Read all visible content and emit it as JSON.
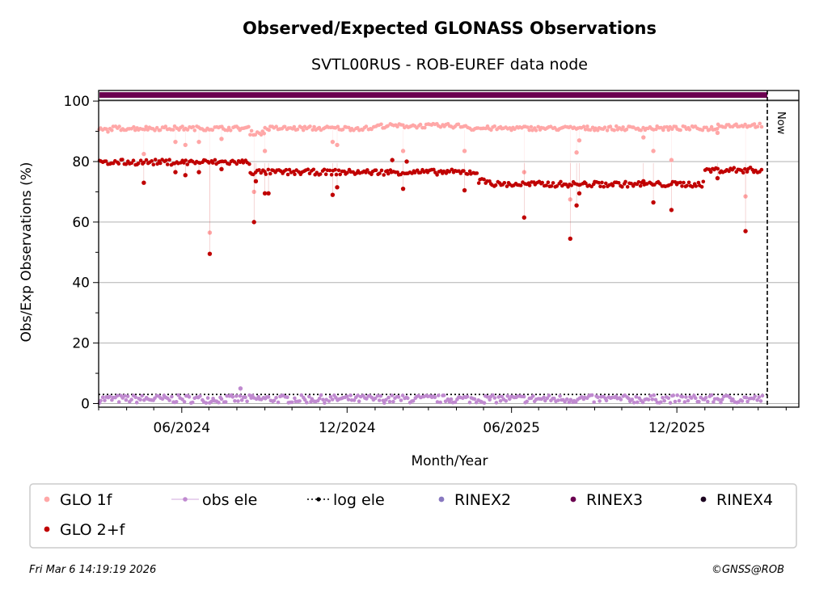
{
  "chart_data": {
    "type": "scatter",
    "title": "Observed/Expected GLONASS Observations",
    "subtitle": "SVTL00RUS - ROB-EUREF data node",
    "xlabel": "Month/Year",
    "ylabel": "Obs/Exp Observations (%)",
    "ylim": [
      0,
      103
    ],
    "yticks": [
      0,
      20,
      40,
      60,
      80,
      100
    ],
    "xticks": [
      "06/2024",
      "12/2024",
      "06/2025",
      "12/2025"
    ],
    "now_label": "Now",
    "grid": "horizontal",
    "legend_position": "bottom",
    "series": [
      {
        "name": "GLO 1f",
        "color": "#ffa7a7",
        "segments": [
          {
            "from": "2024-03-01",
            "to": "2024-03-15",
            "value": 90.5
          },
          {
            "from": "2024-03-15",
            "to": "2024-08-15",
            "value": 91.0
          },
          {
            "from": "2024-08-15",
            "to": "2024-09-01",
            "value": 89.5
          },
          {
            "from": "2024-09-01",
            "to": "2025-01-01",
            "value": 91.0
          },
          {
            "from": "2025-01-01",
            "to": "2025-04-15",
            "value": 91.8
          },
          {
            "from": "2025-04-15",
            "to": "2025-08-15",
            "value": 91.0
          },
          {
            "from": "2025-08-15",
            "to": "2026-01-15",
            "value": 91.0
          },
          {
            "from": "2026-01-15",
            "to": "2026-03-06",
            "value": 92.0
          }
        ],
        "outliers": [
          {
            "date": "2024-04-20",
            "value": 82.5
          },
          {
            "date": "2024-05-25",
            "value": 86.5
          },
          {
            "date": "2024-06-05",
            "value": 85.5
          },
          {
            "date": "2024-06-20",
            "value": 86.5
          },
          {
            "date": "2024-07-02",
            "value": 56.5
          },
          {
            "date": "2024-07-15",
            "value": 87.5
          },
          {
            "date": "2024-08-20",
            "value": 70.0
          },
          {
            "date": "2024-09-01",
            "value": 83.5
          },
          {
            "date": "2024-11-15",
            "value": 86.5
          },
          {
            "date": "2024-11-20",
            "value": 85.5
          },
          {
            "date": "2025-02-01",
            "value": 83.5
          },
          {
            "date": "2025-04-10",
            "value": 83.5
          },
          {
            "date": "2025-06-15",
            "value": 76.5
          },
          {
            "date": "2025-08-05",
            "value": 67.5
          },
          {
            "date": "2025-08-12",
            "value": 83.0
          },
          {
            "date": "2025-08-15",
            "value": 87.0
          },
          {
            "date": "2025-10-25",
            "value": 88.0
          },
          {
            "date": "2025-11-05",
            "value": 83.5
          },
          {
            "date": "2025-11-25",
            "value": 80.5
          },
          {
            "date": "2026-01-15",
            "value": 89.5
          },
          {
            "date": "2026-02-15",
            "value": 68.5
          }
        ]
      },
      {
        "name": "GLO 2+f",
        "color": "#c00000",
        "segments": [
          {
            "from": "2024-03-01",
            "to": "2024-03-15",
            "value": 79.5
          },
          {
            "from": "2024-03-15",
            "to": "2024-08-15",
            "value": 79.8
          },
          {
            "from": "2024-08-15",
            "to": "2024-12-15",
            "value": 76.5
          },
          {
            "from": "2024-12-15",
            "to": "2025-01-15",
            "value": 76.5
          },
          {
            "from": "2025-01-15",
            "to": "2025-04-25",
            "value": 76.5
          },
          {
            "from": "2025-04-25",
            "to": "2025-05-10",
            "value": 73.5
          },
          {
            "from": "2025-05-10",
            "to": "2026-01-01",
            "value": 72.5
          },
          {
            "from": "2026-01-01",
            "to": "2026-03-06",
            "value": 77.2
          }
        ],
        "outliers": [
          {
            "date": "2024-04-20",
            "value": 73.0
          },
          {
            "date": "2024-05-25",
            "value": 76.5
          },
          {
            "date": "2024-06-05",
            "value": 75.5
          },
          {
            "date": "2024-06-20",
            "value": 76.5
          },
          {
            "date": "2024-07-02",
            "value": 49.5
          },
          {
            "date": "2024-07-15",
            "value": 77.5
          },
          {
            "date": "2024-08-20",
            "value": 60.0
          },
          {
            "date": "2024-08-22",
            "value": 73.5
          },
          {
            "date": "2024-09-01",
            "value": 69.5
          },
          {
            "date": "2024-09-05",
            "value": 69.5
          },
          {
            "date": "2024-11-15",
            "value": 69.0
          },
          {
            "date": "2024-11-20",
            "value": 71.5
          },
          {
            "date": "2025-01-20",
            "value": 80.5
          },
          {
            "date": "2025-02-01",
            "value": 71.0
          },
          {
            "date": "2025-02-05",
            "value": 80.0
          },
          {
            "date": "2025-04-10",
            "value": 70.5
          },
          {
            "date": "2025-06-15",
            "value": 61.5
          },
          {
            "date": "2025-08-05",
            "value": 54.5
          },
          {
            "date": "2025-08-12",
            "value": 65.5
          },
          {
            "date": "2025-08-15",
            "value": 69.5
          },
          {
            "date": "2025-10-25",
            "value": 73.5
          },
          {
            "date": "2025-11-05",
            "value": 66.5
          },
          {
            "date": "2025-11-25",
            "value": 64.0
          },
          {
            "date": "2026-01-15",
            "value": 74.5
          },
          {
            "date": "2026-02-15",
            "value": 57.0
          }
        ]
      },
      {
        "name": "obs ele",
        "color": "#c08ad0",
        "segments": [
          {
            "from": "2024-03-01",
            "to": "2026-03-06",
            "value": 1.5
          }
        ],
        "outliers": [
          {
            "date": "2024-08-05",
            "value": 5.0
          }
        ]
      },
      {
        "name": "log ele",
        "color": "#000000",
        "style": "dotted",
        "value": 3.0
      },
      {
        "name": "RINEX2",
        "color": "#8878c0",
        "points": []
      },
      {
        "name": "RINEX3",
        "color": "#6b0050",
        "band_value": 102.0
      },
      {
        "name": "RINEX4",
        "color": "#1c0520",
        "points": []
      }
    ],
    "legend": [
      {
        "name": "GLO 1f",
        "color": "#ffa7a7",
        "kind": "dot"
      },
      {
        "name": "obs ele",
        "color": "#c08ad0",
        "kind": "line-dot"
      },
      {
        "name": "log ele",
        "color": "#000000",
        "kind": "dotted-line"
      },
      {
        "name": "RINEX2",
        "color": "#8878c0",
        "kind": "dot"
      },
      {
        "name": "RINEX3",
        "color": "#6b0050",
        "kind": "dot"
      },
      {
        "name": "RINEX4",
        "color": "#1c0520",
        "kind": "dot"
      },
      {
        "name": "GLO 2+f",
        "color": "#c00000",
        "kind": "dot"
      }
    ],
    "date_range": {
      "start": "2024-03-01",
      "end": "2026-04-15",
      "now": "2026-03-06"
    },
    "footer_left": "Fri Mar  6 14:19:19 2026",
    "footer_right": "©GNSS@ROB"
  }
}
